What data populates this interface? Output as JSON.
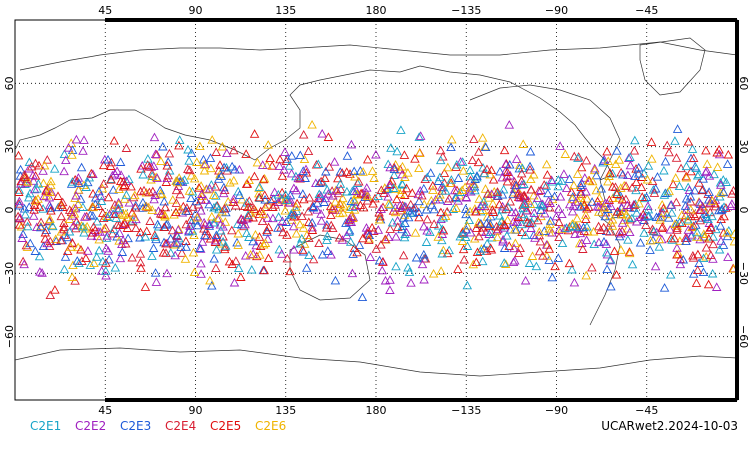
{
  "map": {
    "type": "scatter-map",
    "projection": "cylindrical equidistant",
    "lon_range": [
      0,
      360
    ],
    "lat_range": [
      -90,
      90
    ],
    "grid": true,
    "lon_ticks": [
      {
        "lon": 45,
        "label": "45"
      },
      {
        "lon": 90,
        "label": "90"
      },
      {
        "lon": 135,
        "label": "135"
      },
      {
        "lon": 180,
        "label": "180"
      },
      {
        "lon": 225,
        "label": "−135"
      },
      {
        "lon": 270,
        "label": "−90"
      },
      {
        "lon": 315,
        "label": "−45"
      }
    ],
    "lat_ticks": [
      {
        "lat": 60,
        "label": "60"
      },
      {
        "lat": 30,
        "label": "30"
      },
      {
        "lat": 0,
        "label": "0"
      },
      {
        "lat": -30,
        "label": "−30"
      },
      {
        "lat": -60,
        "label": "−60"
      }
    ],
    "marker": "triangle",
    "data_coverage_lat": [
      -45,
      45
    ]
  },
  "series": [
    {
      "name": "C2E1",
      "color": "#19a4c8"
    },
    {
      "name": "C2E2",
      "color": "#a020c0"
    },
    {
      "name": "C2E3",
      "color": "#1e5ad8"
    },
    {
      "name": "C2E4",
      "color": "#d81e32"
    },
    {
      "name": "C2E5",
      "color": "#e01010"
    },
    {
      "name": "C2E6",
      "color": "#f0b400"
    }
  ],
  "footer": {
    "identifier": "UCARwet2.2024-10-03"
  }
}
